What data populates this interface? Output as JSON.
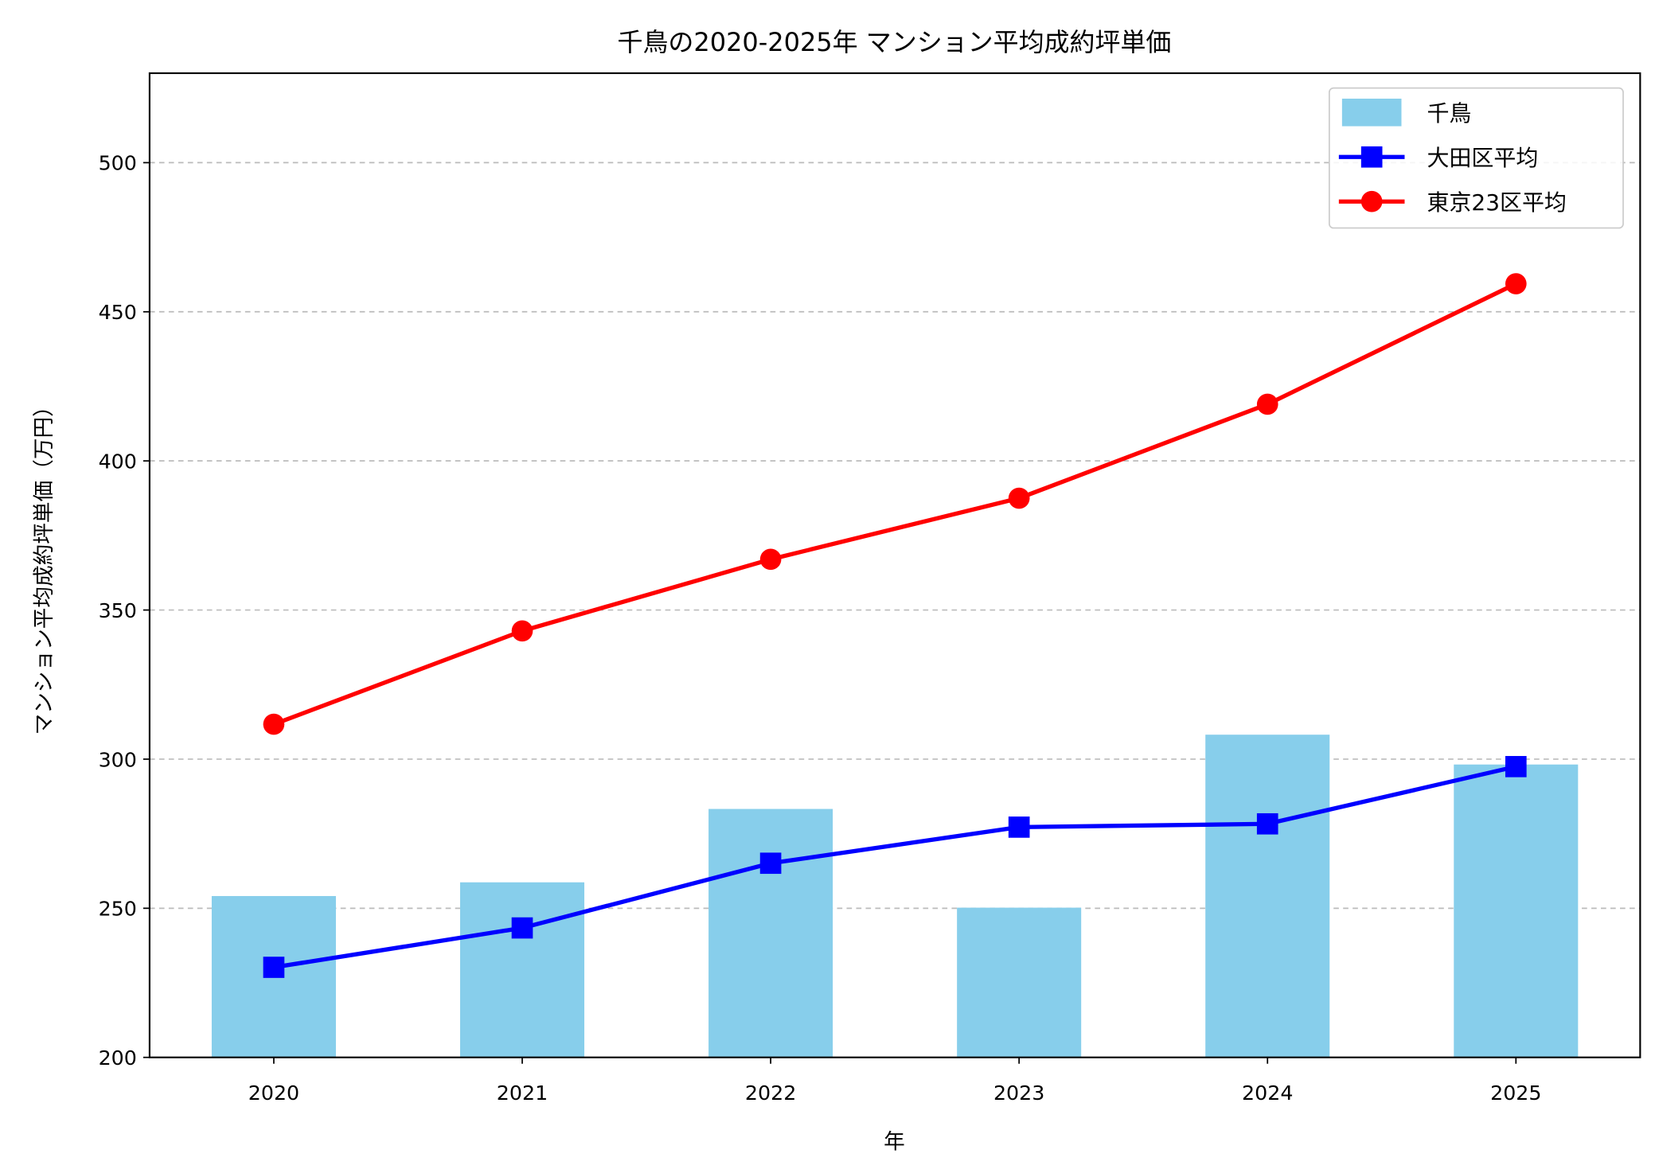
{
  "chart_data": {
    "type": "bar+line",
    "title": "千鳥の2020-2025年 マンション平均成約坪単価",
    "xlabel": "年",
    "ylabel": "マンション平均成約坪単価（万円）",
    "categories": [
      "2020",
      "2021",
      "2022",
      "2023",
      "2024",
      "2025"
    ],
    "ylim": [
      200,
      530
    ],
    "yticks": [
      "200",
      "250",
      "300",
      "350",
      "400",
      "450",
      "500"
    ],
    "grid": "y-dashed",
    "legend_position": "top-right",
    "series": [
      {
        "name": "千鳥",
        "type": "bar",
        "color": "#87CEEB",
        "values": [
          254.1,
          258.7,
          283.3,
          250.2,
          308.2,
          298.2
        ]
      },
      {
        "name": "大田区平均",
        "type": "line",
        "marker": "square",
        "color": "#0000FF",
        "values": [
          230.2,
          243.4,
          265.1,
          277.2,
          278.3,
          297.5
        ]
      },
      {
        "name": "東京23区平均",
        "type": "line",
        "marker": "circle",
        "color": "#FF0000",
        "values": [
          311.7,
          343.0,
          367.0,
          387.5,
          419.0,
          459.4
        ]
      }
    ]
  }
}
